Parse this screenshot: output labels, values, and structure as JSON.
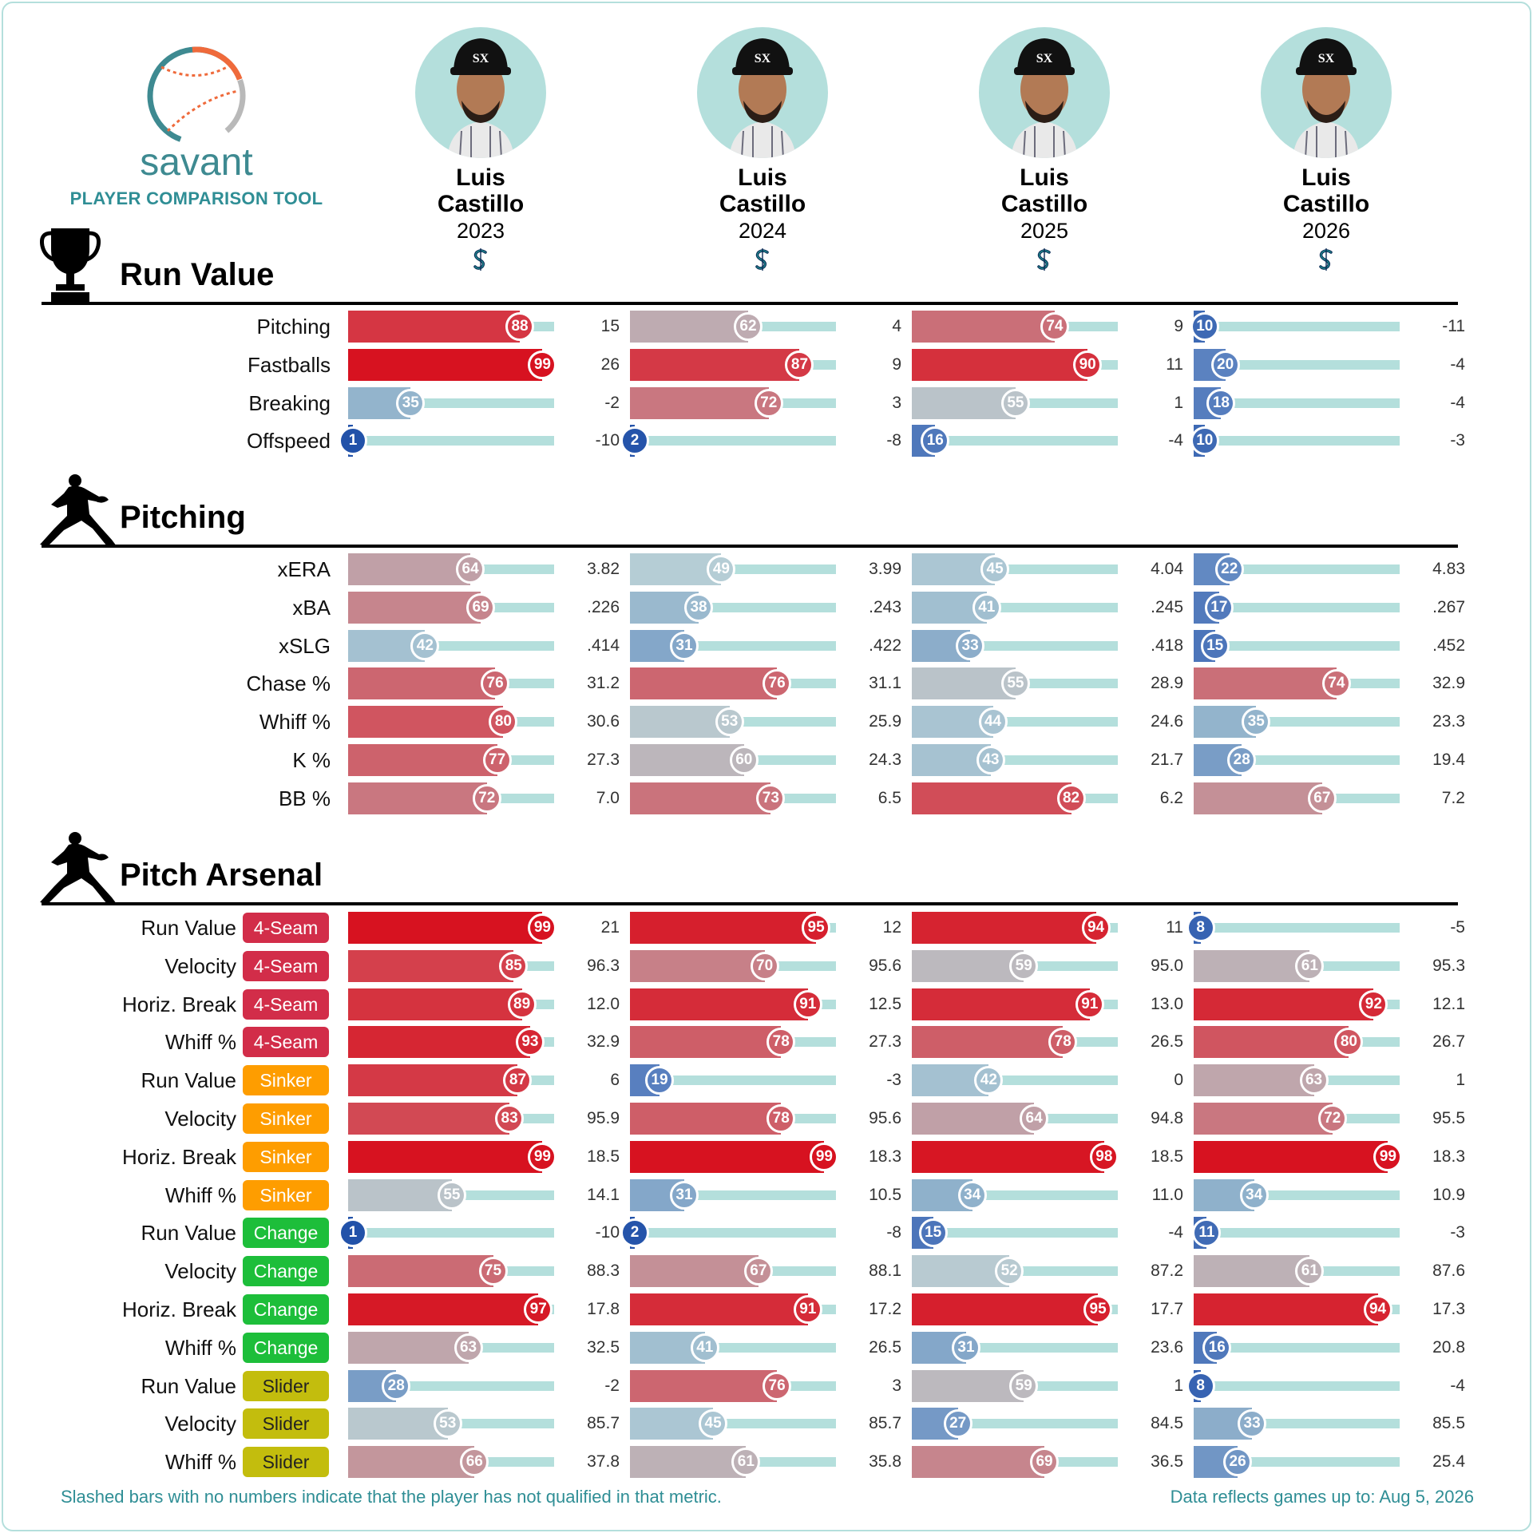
{
  "brand": {
    "name": "savant",
    "subtitle": "PLAYER COMPARISON TOOL"
  },
  "players": [
    {
      "first": "Luis",
      "last": "Castillo",
      "year": "2023",
      "team_logo": "mariners-logo"
    },
    {
      "first": "Luis",
      "last": "Castillo",
      "year": "2024",
      "team_logo": "mariners-logo"
    },
    {
      "first": "Luis",
      "last": "Castillo",
      "year": "2025",
      "team_logo": "mariners-logo"
    },
    {
      "first": "Luis",
      "last": "Castillo",
      "year": "2026",
      "team_logo": "mariners-logo"
    }
  ],
  "sections": [
    {
      "title": "Run Value",
      "icon": "trophy-icon",
      "rows": [
        {
          "label": "Pitching",
          "cells": [
            {
              "pct": 88,
              "value": "15"
            },
            {
              "pct": 62,
              "value": "4"
            },
            {
              "pct": 74,
              "value": "9"
            },
            {
              "pct": 10,
              "value": "-11"
            }
          ]
        },
        {
          "label": "Fastballs",
          "cells": [
            {
              "pct": 99,
              "value": "26"
            },
            {
              "pct": 87,
              "value": "9"
            },
            {
              "pct": 90,
              "value": "11"
            },
            {
              "pct": 20,
              "value": "-4"
            }
          ]
        },
        {
          "label": "Breaking",
          "cells": [
            {
              "pct": 35,
              "value": "-2"
            },
            {
              "pct": 72,
              "value": "3"
            },
            {
              "pct": 55,
              "value": "1"
            },
            {
              "pct": 18,
              "value": "-4"
            }
          ]
        },
        {
          "label": "Offspeed",
          "cells": [
            {
              "pct": 1,
              "value": "-10"
            },
            {
              "pct": 2,
              "value": "-8"
            },
            {
              "pct": 16,
              "value": "-4"
            },
            {
              "pct": 10,
              "value": "-3"
            }
          ]
        }
      ]
    },
    {
      "title": "Pitching",
      "icon": "pitcher-icon",
      "rows": [
        {
          "label": "xERA",
          "cells": [
            {
              "pct": 64,
              "value": "3.82"
            },
            {
              "pct": 49,
              "value": "3.99"
            },
            {
              "pct": 45,
              "value": "4.04"
            },
            {
              "pct": 22,
              "value": "4.83"
            }
          ]
        },
        {
          "label": "xBA",
          "cells": [
            {
              "pct": 69,
              "value": ".226"
            },
            {
              "pct": 38,
              "value": ".243"
            },
            {
              "pct": 41,
              "value": ".245"
            },
            {
              "pct": 17,
              "value": ".267"
            }
          ]
        },
        {
          "label": "xSLG",
          "cells": [
            {
              "pct": 42,
              "value": ".414"
            },
            {
              "pct": 31,
              "value": ".422"
            },
            {
              "pct": 33,
              "value": ".418"
            },
            {
              "pct": 15,
              "value": ".452"
            }
          ]
        },
        {
          "label": "Chase %",
          "cells": [
            {
              "pct": 76,
              "value": "31.2"
            },
            {
              "pct": 76,
              "value": "31.1"
            },
            {
              "pct": 55,
              "value": "28.9"
            },
            {
              "pct": 74,
              "value": "32.9"
            }
          ]
        },
        {
          "label": "Whiff %",
          "cells": [
            {
              "pct": 80,
              "value": "30.6"
            },
            {
              "pct": 53,
              "value": "25.9"
            },
            {
              "pct": 44,
              "value": "24.6"
            },
            {
              "pct": 35,
              "value": "23.3"
            }
          ]
        },
        {
          "label": "K %",
          "cells": [
            {
              "pct": 77,
              "value": "27.3"
            },
            {
              "pct": 60,
              "value": "24.3"
            },
            {
              "pct": 43,
              "value": "21.7"
            },
            {
              "pct": 28,
              "value": "19.4"
            }
          ]
        },
        {
          "label": "BB %",
          "cells": [
            {
              "pct": 72,
              "value": "7.0"
            },
            {
              "pct": 73,
              "value": "6.5"
            },
            {
              "pct": 82,
              "value": "6.2"
            },
            {
              "pct": 67,
              "value": "7.2"
            }
          ]
        }
      ]
    },
    {
      "title": "Pitch Arsenal",
      "icon": "pitcher-icon",
      "rows": [
        {
          "label": "Run Value",
          "pitch": "4-Seam",
          "cells": [
            {
              "pct": 99,
              "value": "21"
            },
            {
              "pct": 95,
              "value": "12"
            },
            {
              "pct": 94,
              "value": "11"
            },
            {
              "pct": 8,
              "value": "-5"
            }
          ]
        },
        {
          "label": "Velocity",
          "pitch": "4-Seam",
          "cells": [
            {
              "pct": 85,
              "value": "96.3"
            },
            {
              "pct": 70,
              "value": "95.6"
            },
            {
              "pct": 59,
              "value": "95.0"
            },
            {
              "pct": 61,
              "value": "95.3"
            }
          ]
        },
        {
          "label": "Horiz. Break",
          "pitch": "4-Seam",
          "cells": [
            {
              "pct": 89,
              "value": "12.0"
            },
            {
              "pct": 91,
              "value": "12.5"
            },
            {
              "pct": 91,
              "value": "13.0"
            },
            {
              "pct": 92,
              "value": "12.1"
            }
          ]
        },
        {
          "label": "Whiff %",
          "pitch": "4-Seam",
          "cells": [
            {
              "pct": 93,
              "value": "32.9"
            },
            {
              "pct": 78,
              "value": "27.3"
            },
            {
              "pct": 78,
              "value": "26.5"
            },
            {
              "pct": 80,
              "value": "26.7"
            }
          ]
        },
        {
          "label": "Run Value",
          "pitch": "Sinker",
          "cells": [
            {
              "pct": 87,
              "value": "6"
            },
            {
              "pct": 19,
              "value": "-3"
            },
            {
              "pct": 42,
              "value": "0"
            },
            {
              "pct": 63,
              "value": "1"
            }
          ]
        },
        {
          "label": "Velocity",
          "pitch": "Sinker",
          "cells": [
            {
              "pct": 83,
              "value": "95.9"
            },
            {
              "pct": 78,
              "value": "95.6"
            },
            {
              "pct": 64,
              "value": "94.8"
            },
            {
              "pct": 72,
              "value": "95.5"
            }
          ]
        },
        {
          "label": "Horiz. Break",
          "pitch": "Sinker",
          "cells": [
            {
              "pct": 99,
              "value": "18.5"
            },
            {
              "pct": 99,
              "value": "18.3"
            },
            {
              "pct": 98,
              "value": "18.5"
            },
            {
              "pct": 99,
              "value": "18.3"
            }
          ]
        },
        {
          "label": "Whiff %",
          "pitch": "Sinker",
          "cells": [
            {
              "pct": 55,
              "value": "14.1"
            },
            {
              "pct": 31,
              "value": "10.5"
            },
            {
              "pct": 34,
              "value": "11.0"
            },
            {
              "pct": 34,
              "value": "10.9"
            }
          ]
        },
        {
          "label": "Run Value",
          "pitch": "Change",
          "cells": [
            {
              "pct": 1,
              "value": "-10"
            },
            {
              "pct": 2,
              "value": "-8"
            },
            {
              "pct": 15,
              "value": "-4"
            },
            {
              "pct": 11,
              "value": "-3"
            }
          ]
        },
        {
          "label": "Velocity",
          "pitch": "Change",
          "cells": [
            {
              "pct": 75,
              "value": "88.3"
            },
            {
              "pct": 67,
              "value": "88.1"
            },
            {
              "pct": 52,
              "value": "87.2"
            },
            {
              "pct": 61,
              "value": "87.6"
            }
          ]
        },
        {
          "label": "Horiz. Break",
          "pitch": "Change",
          "cells": [
            {
              "pct": 97,
              "value": "17.8"
            },
            {
              "pct": 91,
              "value": "17.2"
            },
            {
              "pct": 95,
              "value": "17.7"
            },
            {
              "pct": 94,
              "value": "17.3"
            }
          ]
        },
        {
          "label": "Whiff %",
          "pitch": "Change",
          "cells": [
            {
              "pct": 63,
              "value": "32.5"
            },
            {
              "pct": 41,
              "value": "26.5"
            },
            {
              "pct": 31,
              "value": "23.6"
            },
            {
              "pct": 16,
              "value": "20.8"
            }
          ]
        },
        {
          "label": "Run Value",
          "pitch": "Slider",
          "cells": [
            {
              "pct": 28,
              "value": "-2"
            },
            {
              "pct": 76,
              "value": "3"
            },
            {
              "pct": 59,
              "value": "1"
            },
            {
              "pct": 8,
              "value": "-4"
            }
          ]
        },
        {
          "label": "Velocity",
          "pitch": "Slider",
          "cells": [
            {
              "pct": 53,
              "value": "85.7"
            },
            {
              "pct": 45,
              "value": "85.7"
            },
            {
              "pct": 27,
              "value": "84.5"
            },
            {
              "pct": 33,
              "value": "85.5"
            }
          ]
        },
        {
          "label": "Whiff %",
          "pitch": "Slider",
          "cells": [
            {
              "pct": 66,
              "value": "37.8"
            },
            {
              "pct": 61,
              "value": "35.8"
            },
            {
              "pct": 69,
              "value": "36.5"
            },
            {
              "pct": 26,
              "value": "25.4"
            }
          ]
        }
      ]
    }
  ],
  "pitch_colors": {
    "4-Seam": "#d22d49",
    "Sinker": "#fe9d00",
    "Change": "#1dbe3a",
    "Slider": "#c3bd0d"
  },
  "colors": {
    "track": "#b4dfdc",
    "accent": "#2f8e95"
  },
  "footer": {
    "note": "Slashed bars with no numbers indicate that the player has not qualified in that metric.",
    "date": "Data reflects games up to: Aug 5, 2026"
  }
}
